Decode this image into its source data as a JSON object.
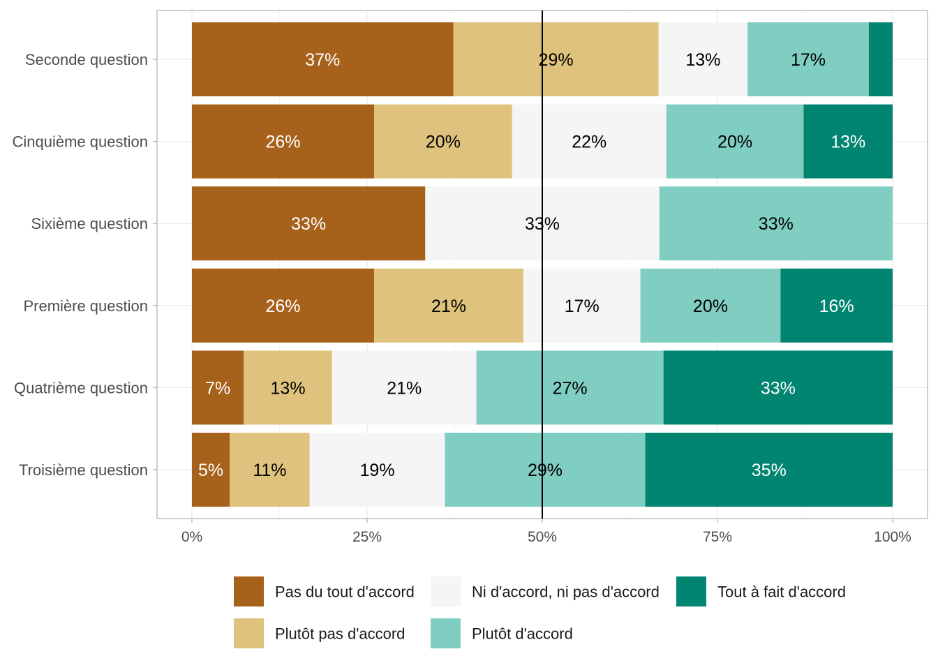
{
  "chart_data": {
    "type": "bar",
    "orientation": "horizontal-stacked",
    "title": "",
    "xlabel": "",
    "ylabel": "",
    "xlim": [
      0,
      100
    ],
    "x_ticks": [
      0,
      25,
      50,
      75,
      100
    ],
    "x_tick_labels": [
      "0%",
      "25%",
      "50%",
      "75%",
      "100%"
    ],
    "reference_line": 50,
    "legend_position": "bottom",
    "categories": [
      "Seconde question",
      "Cinquième question",
      "Sixième question",
      "Première question",
      "Quatrième question",
      "Troisième question"
    ],
    "series": [
      {
        "name": "Pas du tout d'accord",
        "color": "#a6611a",
        "label_color": "#ffffff",
        "values": [
          37.3,
          26.0,
          33.3,
          26.0,
          7.4,
          5.4
        ],
        "labels": [
          "37%",
          "26%",
          "33%",
          "26%",
          "7%",
          "5%"
        ]
      },
      {
        "name": "Plutôt pas d'accord",
        "color": "#dfc27d",
        "label_color": "#000000",
        "values": [
          29.3,
          19.7,
          0,
          21.3,
          12.6,
          11.4
        ],
        "labels": [
          "29%",
          "20%",
          "",
          "21%",
          "13%",
          "11%"
        ]
      },
      {
        "name": "Ni d'accord, ni pas d'accord",
        "color": "#f5f5f5",
        "label_color": "#000000",
        "values": [
          12.7,
          22.0,
          33.4,
          16.7,
          20.6,
          19.3
        ],
        "labels": [
          "13%",
          "22%",
          "33%",
          "17%",
          "21%",
          "19%"
        ]
      },
      {
        "name": "Plutôt d'accord",
        "color": "#80cdc1",
        "label_color": "#000000",
        "values": [
          17.3,
          19.6,
          33.3,
          20.0,
          26.7,
          28.6
        ],
        "labels": [
          "17%",
          "20%",
          "33%",
          "20%",
          "27%",
          "29%"
        ]
      },
      {
        "name": "Tout à fait d'accord",
        "color": "#018571",
        "label_color": "#ffffff",
        "values": [
          3.4,
          12.7,
          0,
          16.0,
          32.7,
          35.3
        ],
        "labels": [
          "",
          "13%",
          "",
          "16%",
          "33%",
          "35%"
        ]
      }
    ]
  }
}
